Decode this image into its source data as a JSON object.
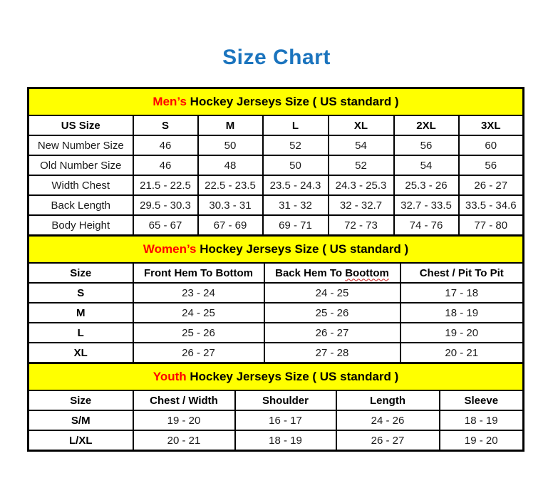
{
  "page_title": "Size Chart",
  "colors": {
    "title_blue": "#1b74be",
    "band_yellow": "#ffff00",
    "accent_red": "#ff0000"
  },
  "tables": [
    {
      "id": "mens",
      "caption": {
        "highlight": "Men’s",
        "rest": " Hockey Jerseys Size ( US standard )"
      },
      "headers": [
        "US Size",
        "S",
        "M",
        "L",
        "XL",
        "2XL",
        "3XL"
      ],
      "rows": [
        [
          "New Number Size",
          "46",
          "50",
          "52",
          "54",
          "56",
          "60"
        ],
        [
          "Old Number Size",
          "46",
          "48",
          "50",
          "52",
          "54",
          "56"
        ],
        [
          "Width Chest",
          "21.5 - 22.5",
          "22.5 - 23.5",
          "23.5 - 24.3",
          "24.3 - 25.3",
          "25.3 - 26",
          "26 - 27"
        ],
        [
          "Back Length",
          "29.5 - 30.3",
          "30.3 - 31",
          "31 - 32",
          "32 - 32.7",
          "32.7 - 33.5",
          "33.5 - 34.6"
        ],
        [
          "Body Height",
          "65 - 67",
          "67 - 69",
          "69 - 71",
          "72 - 73",
          "74 - 76",
          "77 - 80"
        ]
      ]
    },
    {
      "id": "womens",
      "caption": {
        "highlight": "Women’s",
        "rest": " Hockey Jerseys Size ( US standard )"
      },
      "headers": [
        "Size",
        "Front Hem To Bottom",
        "Back Hem To Boottom",
        "Chest / Pit To Pit"
      ],
      "spellcheck_word": "Boottom",
      "rows": [
        [
          "S",
          "23 - 24",
          "24 - 25",
          "17 - 18"
        ],
        [
          "M",
          "24 - 25",
          "25 - 26",
          "18 - 19"
        ],
        [
          "L",
          "25 - 26",
          "26 - 27",
          "19 - 20"
        ],
        [
          "XL",
          "26 - 27",
          "27 - 28",
          "20 - 21"
        ]
      ]
    },
    {
      "id": "youth",
      "caption": {
        "highlight": "Youth",
        "rest": " Hockey Jerseys Size ( US standard )"
      },
      "headers": [
        "Size",
        "Chest / Width",
        "Shoulder",
        "Length",
        "Sleeve"
      ],
      "rows": [
        [
          "S/M",
          "19 - 20",
          "16 - 17",
          "24 - 26",
          "18 - 19"
        ],
        [
          "L/XL",
          "20 - 21",
          "18 - 19",
          "26 - 27",
          "19 - 20"
        ]
      ]
    }
  ]
}
